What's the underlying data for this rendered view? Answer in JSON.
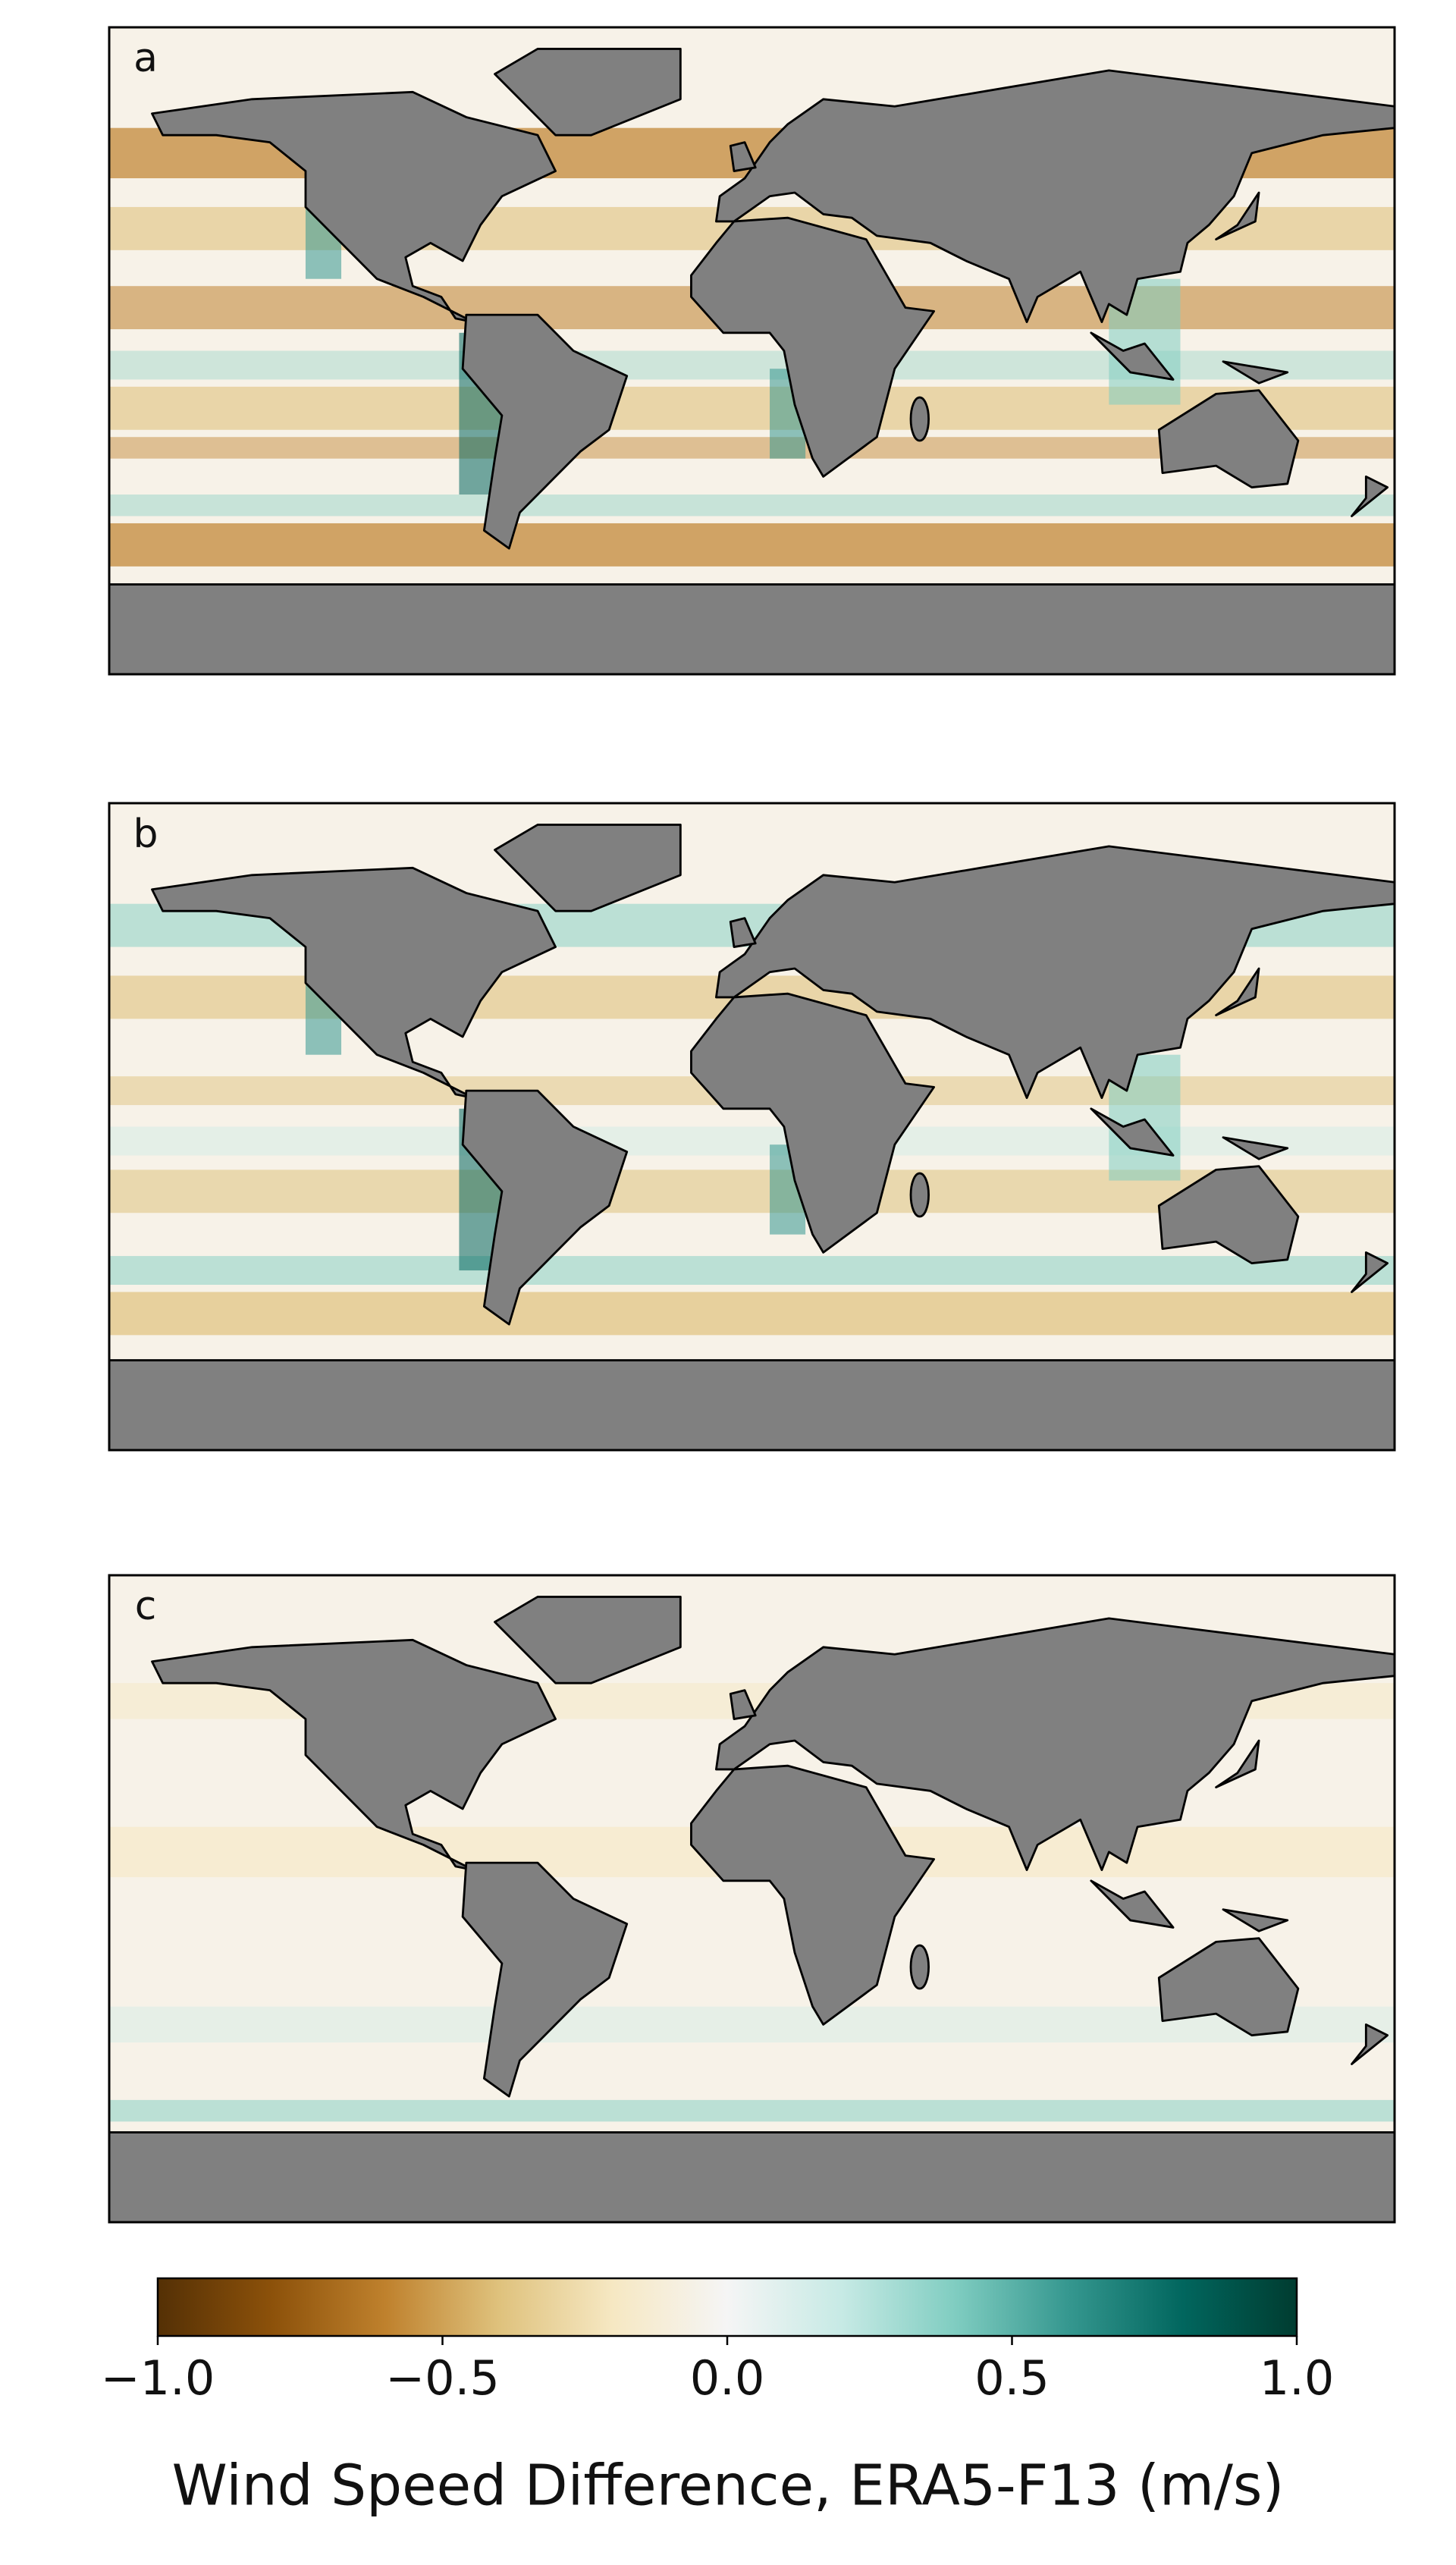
{
  "chart_data": {
    "type": "map",
    "panels": [
      {
        "label": "a"
      },
      {
        "label": "b"
      },
      {
        "label": "c"
      }
    ],
    "colorbar": {
      "label": "Wind Speed Difference, ERA5-F13 (m/s)",
      "lim": [
        -1,
        1
      ],
      "ticks": [
        {
          "value": -1,
          "label": "−1.0"
        },
        {
          "value": -0.5,
          "label": "−0.5"
        },
        {
          "value": 0,
          "label": "0.0"
        },
        0.5,
        {
          "value": 1,
          "label": "1.0"
        }
      ]
    }
  }
}
